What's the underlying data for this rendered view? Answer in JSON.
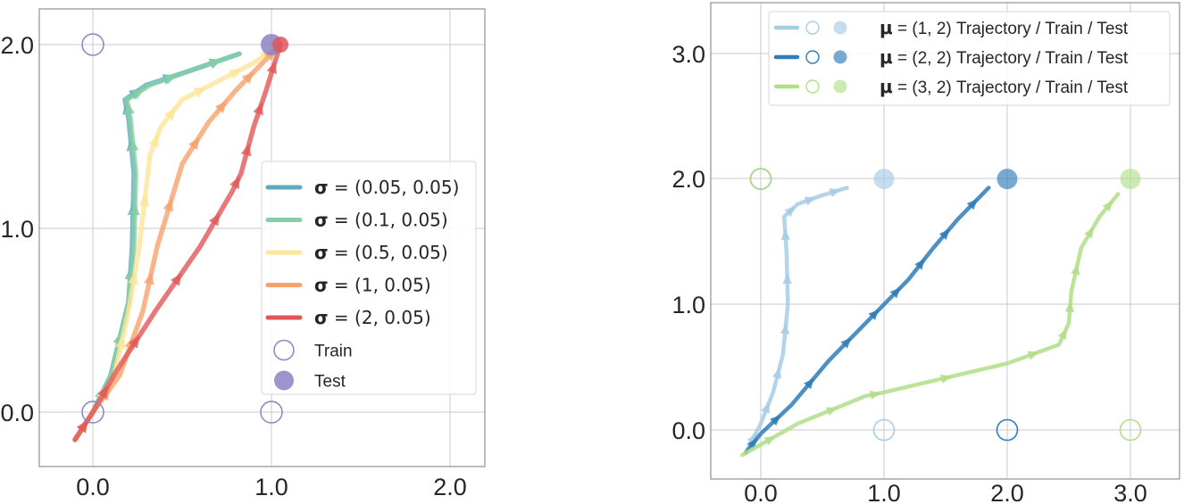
{
  "chart_data": [
    {
      "type": "line",
      "title": "",
      "xlabel": "",
      "ylabel": "",
      "xlim": [
        -0.3,
        2.2
      ],
      "ylim": [
        -0.3,
        2.2
      ],
      "xticks": [
        "0.0",
        "1.0",
        "2.0"
      ],
      "yticks": [
        "0.0",
        "1.0",
        "2.0"
      ],
      "grid": true,
      "legend_position": "center right",
      "series": [
        {
          "name": "σ = (0.05, 0.05)",
          "sym": "σ",
          "value": "(0.05, 0.05)",
          "color": "#5fa8c3",
          "points": [
            [
              -0.1,
              -0.15
            ],
            [
              0.0,
              0.0
            ],
            [
              0.1,
              0.2
            ],
            [
              0.2,
              0.6
            ],
            [
              0.22,
              0.9
            ],
            [
              0.23,
              1.3
            ],
            [
              0.2,
              1.6
            ],
            [
              0.18,
              1.7
            ],
            [
              0.3,
              1.78
            ],
            [
              0.55,
              1.86
            ],
            [
              0.82,
              1.95
            ]
          ]
        },
        {
          "name": "σ = (0.1, 0.05)",
          "sym": "σ",
          "value": "(0.1, 0.05)",
          "color": "#86cfa5",
          "points": [
            [
              -0.1,
              -0.15
            ],
            [
              0.0,
              0.0
            ],
            [
              0.1,
              0.2
            ],
            [
              0.2,
              0.6
            ],
            [
              0.23,
              0.9
            ],
            [
              0.24,
              1.3
            ],
            [
              0.21,
              1.6
            ],
            [
              0.19,
              1.7
            ],
            [
              0.32,
              1.78
            ],
            [
              0.55,
              1.86
            ],
            [
              0.82,
              1.95
            ]
          ]
        },
        {
          "name": "σ = (0.5, 0.05)",
          "sym": "σ",
          "value": "(0.5, 0.05)",
          "color": "#fde59a",
          "points": [
            [
              -0.1,
              -0.15
            ],
            [
              0.0,
              0.0
            ],
            [
              0.12,
              0.2
            ],
            [
              0.2,
              0.55
            ],
            [
              0.26,
              0.9
            ],
            [
              0.32,
              1.4
            ],
            [
              0.38,
              1.55
            ],
            [
              0.5,
              1.7
            ],
            [
              0.7,
              1.8
            ],
            [
              0.9,
              1.9
            ],
            [
              1.05,
              2.0
            ]
          ]
        },
        {
          "name": "σ = (1, 0.05)",
          "sym": "σ",
          "value": "(1, 0.05)",
          "color": "#f8a26b",
          "points": [
            [
              -0.1,
              -0.15
            ],
            [
              0.0,
              0.0
            ],
            [
              0.15,
              0.2
            ],
            [
              0.28,
              0.55
            ],
            [
              0.36,
              0.9
            ],
            [
              0.5,
              1.35
            ],
            [
              0.65,
              1.58
            ],
            [
              0.8,
              1.75
            ],
            [
              0.95,
              1.9
            ],
            [
              1.05,
              2.0
            ]
          ]
        },
        {
          "name": "σ = (2, 0.05)",
          "sym": "σ",
          "value": "(2, 0.05)",
          "color": "#e15759",
          "points": [
            [
              -0.1,
              -0.15
            ],
            [
              0.0,
              0.0
            ],
            [
              0.13,
              0.22
            ],
            [
              0.35,
              0.55
            ],
            [
              0.6,
              0.9
            ],
            [
              0.78,
              1.2
            ],
            [
              0.83,
              1.3
            ],
            [
              0.9,
              1.55
            ],
            [
              0.97,
              1.75
            ],
            [
              1.05,
              2.0
            ]
          ]
        }
      ],
      "markers": {
        "train": {
          "label": "Train",
          "color": "#8c83c6",
          "points": [
            [
              0,
              2
            ],
            [
              0,
              0
            ],
            [
              1,
              0
            ]
          ]
        },
        "test": {
          "label": "Test",
          "color": "#8c83c6",
          "points": [
            [
              1,
              2
            ]
          ]
        }
      }
    },
    {
      "type": "line",
      "title": "",
      "xlabel": "",
      "ylabel": "",
      "xlim": [
        -0.45,
        3.45
      ],
      "ylim": [
        -0.4,
        3.4
      ],
      "xticks": [
        "0.0",
        "1.0",
        "2.0",
        "3.0"
      ],
      "yticks": [
        "0.0",
        "1.0",
        "2.0",
        "3.0"
      ],
      "grid": true,
      "legend_position": "upper right",
      "series": [
        {
          "name": "μ = (1, 2) Trajectory / Train / Test",
          "sym": "μ",
          "value": "(1, 2)",
          "suffix": "Trajectory / Train / Test",
          "color": "#a6cde6",
          "points": [
            [
              -0.12,
              -0.18
            ],
            [
              0.0,
              0.05
            ],
            [
              0.1,
              0.3
            ],
            [
              0.18,
              0.6
            ],
            [
              0.22,
              1.0
            ],
            [
              0.21,
              1.4
            ],
            [
              0.19,
              1.7
            ],
            [
              0.3,
              1.8
            ],
            [
              0.5,
              1.87
            ],
            [
              0.7,
              1.93
            ]
          ],
          "train": [
            [
              0,
              2
            ],
            [
              1,
              0
            ]
          ],
          "test": [
            [
              1,
              2
            ]
          ]
        },
        {
          "name": "μ = (2, 2) Trajectory / Train / Test",
          "sym": "μ",
          "value": "(2, 2)",
          "suffix": "Trajectory / Train / Test",
          "color": "#2f7db8",
          "points": [
            [
              -0.12,
              -0.18
            ],
            [
              0.0,
              -0.03
            ],
            [
              0.25,
              0.2
            ],
            [
              0.55,
              0.55
            ],
            [
              0.85,
              0.85
            ],
            [
              1.0,
              1.0
            ],
            [
              1.2,
              1.2
            ],
            [
              1.4,
              1.45
            ],
            [
              1.6,
              1.68
            ],
            [
              1.85,
              1.93
            ]
          ],
          "train": [
            [
              0,
              2
            ],
            [
              2,
              0
            ]
          ],
          "test": [
            [
              2,
              2
            ]
          ]
        },
        {
          "name": "μ = (3, 2) Trajectory / Train / Test",
          "sym": "μ",
          "value": "(3, 2)",
          "suffix": "Trajectory / Train / Test",
          "color": "#b2de8a",
          "points": [
            [
              -0.15,
              -0.2
            ],
            [
              0.3,
              0.05
            ],
            [
              0.85,
              0.27
            ],
            [
              1.0,
              0.3
            ],
            [
              2.0,
              0.53
            ],
            [
              2.42,
              0.68
            ],
            [
              2.5,
              0.85
            ],
            [
              2.52,
              1.1
            ],
            [
              2.6,
              1.45
            ],
            [
              2.75,
              1.7
            ],
            [
              2.9,
              1.88
            ]
          ],
          "train": [
            [
              0,
              2
            ],
            [
              3,
              0
            ]
          ],
          "test": [
            [
              3,
              2
            ]
          ]
        }
      ]
    }
  ]
}
